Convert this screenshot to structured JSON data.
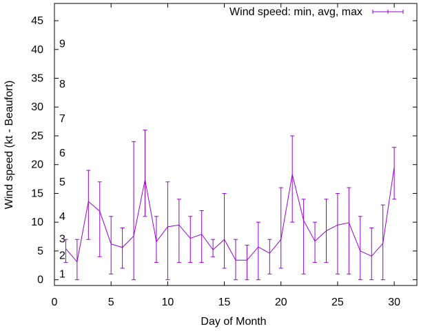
{
  "chart_data": {
    "type": "line",
    "title": "",
    "xlabel": "Day of Month",
    "ylabel": "Wind speed (kt - Beaufort)",
    "xlim": [
      0,
      32
    ],
    "ylim": [
      -1,
      48
    ],
    "x_ticks": [
      "0",
      "5",
      "10",
      "15",
      "20",
      "25",
      "30"
    ],
    "y_ticks": [
      "0",
      "5",
      "10",
      "15",
      "20",
      "25",
      "30",
      "35",
      "40",
      "45"
    ],
    "grid": false,
    "legend_position": "top-right",
    "beaufort_labels": [
      {
        "label": "1",
        "y": 1
      },
      {
        "label": "2",
        "y": 4.2
      },
      {
        "label": "3",
        "y": 7.1
      },
      {
        "label": "4",
        "y": 11
      },
      {
        "label": "5",
        "y": 17
      },
      {
        "label": "6",
        "y": 22
      },
      {
        "label": "7",
        "y": 28
      },
      {
        "label": "8",
        "y": 34
      },
      {
        "label": "9",
        "y": 41
      }
    ],
    "series": [
      {
        "name": "Wind speed: min, avg, max",
        "color": "#9400d3",
        "x": [
          1,
          2,
          3,
          4,
          5,
          6,
          7,
          8,
          9,
          10,
          11,
          12,
          13,
          14,
          15,
          16,
          17,
          18,
          19,
          20,
          21,
          22,
          23,
          24,
          25,
          26,
          27,
          28,
          29,
          30
        ],
        "avg": [
          5.4,
          3.1,
          13.6,
          11.9,
          6.2,
          5.6,
          7.6,
          17.4,
          6.6,
          9.2,
          9.5,
          7.2,
          7.9,
          5.2,
          7.0,
          3.4,
          3.4,
          5.7,
          4.6,
          7.0,
          18.3,
          10.3,
          6.7,
          8.5,
          9.5,
          9.9,
          5.0,
          4.1,
          6.3,
          19.6
        ],
        "min": [
          3,
          0,
          7,
          4,
          1,
          2,
          0,
          11,
          3,
          0,
          3,
          3,
          3,
          4,
          2,
          0,
          0,
          0,
          1,
          2,
          10,
          1,
          3,
          3,
          1,
          1,
          0,
          0,
          0,
          14
        ],
        "max": [
          7,
          7,
          19,
          17,
          11,
          9,
          24,
          26,
          11,
          17,
          14,
          11,
          12,
          7,
          15,
          7,
          6,
          10,
          7,
          16,
          25,
          14,
          10,
          14,
          15,
          16,
          11,
          9,
          13,
          23
        ]
      }
    ]
  }
}
